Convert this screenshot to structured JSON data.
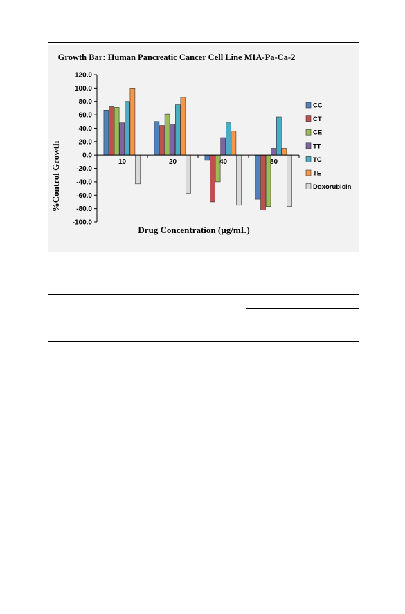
{
  "chart_data": {
    "type": "bar",
    "title": "Growth Bar: Human Pancreatic Cancer Cell Line MIA-Pa-Ca-2",
    "xlabel": "Drug Concentration (µg/mL)",
    "ylabel": "%Control Growth",
    "categories": [
      "10",
      "20",
      "40",
      "80"
    ],
    "ylim": [
      -100,
      120
    ],
    "yticks": [
      "120.0",
      "100.0",
      "80.0",
      "60.0",
      "40.0",
      "20.0",
      "0.0",
      "-20.0",
      "-40.0",
      "-60.0",
      "-80.0",
      "-100.0"
    ],
    "legend_position": "right",
    "grid": false,
    "series": [
      {
        "name": "CC",
        "color": "#4f81bd",
        "values": [
          67,
          50,
          -8,
          -66
        ]
      },
      {
        "name": "CT",
        "color": "#c0504d",
        "values": [
          72,
          44,
          -70,
          -82
        ]
      },
      {
        "name": "CE",
        "color": "#9bbb59",
        "values": [
          71,
          61,
          -40,
          -77
        ]
      },
      {
        "name": "TT",
        "color": "#8064a2",
        "values": [
          48,
          46,
          26,
          10
        ]
      },
      {
        "name": "TC",
        "color": "#4bacc6",
        "values": [
          80,
          75,
          48,
          57
        ]
      },
      {
        "name": "TE",
        "color": "#f79646",
        "values": [
          100,
          86,
          36,
          10
        ]
      },
      {
        "name": "Doxorubicin",
        "color": "#d9d9d9",
        "values": [
          -43,
          -57,
          -75,
          -77
        ]
      }
    ]
  }
}
